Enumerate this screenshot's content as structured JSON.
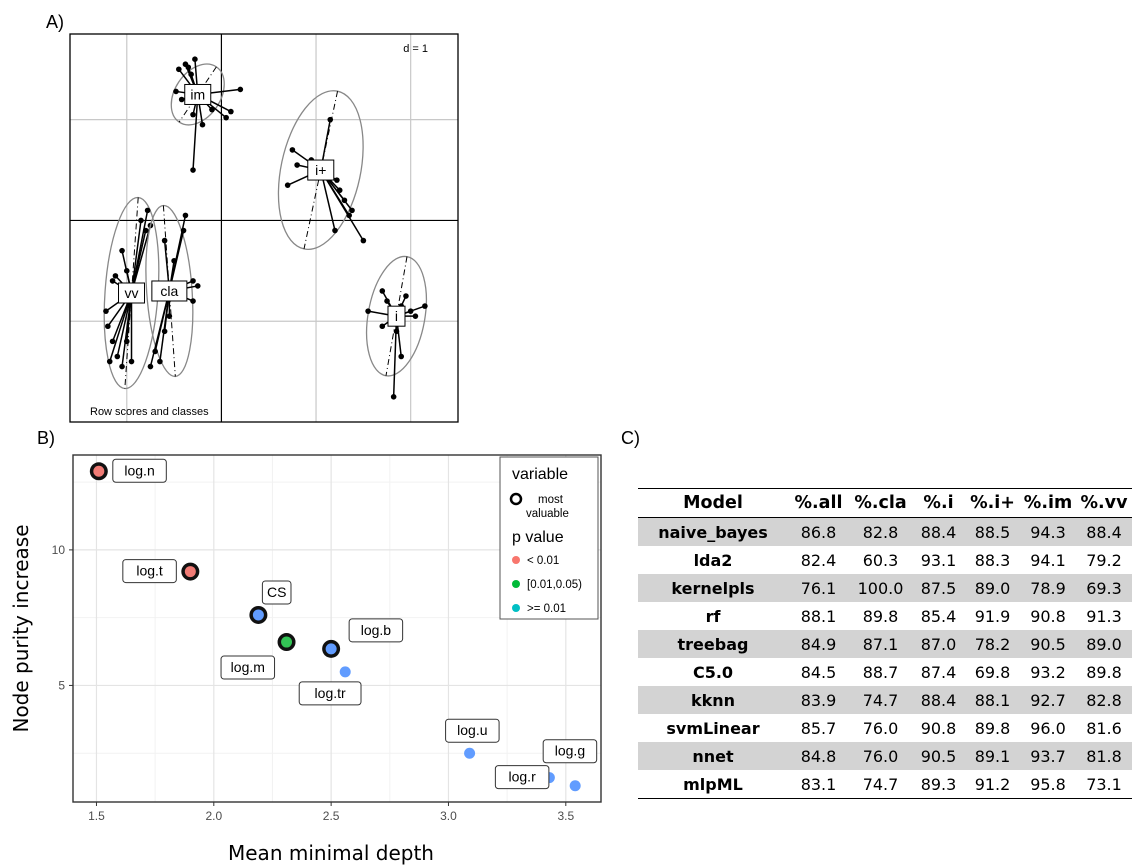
{
  "panel_labels": {
    "a": "A)",
    "b": "B)",
    "c": "C)"
  },
  "chart_data": [
    {
      "type": "scatter",
      "panel": "A",
      "title": "",
      "annotations": {
        "scale": "d = 1",
        "caption": "Row scores and classes"
      },
      "classes": [
        {
          "label": "im",
          "center": [
            -0.25,
            1.25
          ],
          "ellipse": {
            "rx": 0.24,
            "ry": 0.33,
            "angle": -85
          },
          "points": [
            [
              -0.45,
              1.5
            ],
            [
              -0.38,
              1.55
            ],
            [
              -0.32,
              1.45
            ],
            [
              -0.42,
              1.2
            ],
            [
              -0.48,
              1.28
            ],
            [
              -0.3,
              1.05
            ],
            [
              -0.2,
              0.95
            ],
            [
              -0.1,
              1.1
            ],
            [
              0.05,
              1.02
            ],
            [
              0.1,
              1.08
            ],
            [
              0.2,
              1.3
            ],
            [
              -0.28,
              1.6
            ],
            [
              -0.35,
              1.52
            ],
            [
              -0.3,
              0.5
            ]
          ]
        },
        {
          "label": "i+",
          "center": [
            1.05,
            0.5
          ],
          "ellipse": {
            "rx": 0.42,
            "ry": 0.8,
            "angle": -30
          },
          "points": [
            [
              1.15,
              1.0
            ],
            [
              0.75,
              0.7
            ],
            [
              0.8,
              0.55
            ],
            [
              0.7,
              0.35
            ],
            [
              0.95,
              0.6
            ],
            [
              1.22,
              0.4
            ],
            [
              1.3,
              0.2
            ],
            [
              1.38,
              0.1
            ],
            [
              1.25,
              0.3
            ],
            [
              1.2,
              -0.1
            ],
            [
              1.35,
              0.05
            ],
            [
              1.5,
              -0.2
            ]
          ]
        },
        {
          "label": "vv",
          "center": [
            -0.95,
            -0.72
          ],
          "ellipse": {
            "rx": 0.28,
            "ry": 0.95,
            "angle": -10
          },
          "points": [
            [
              -1.22,
              -0.9
            ],
            [
              -1.2,
              -1.05
            ],
            [
              -1.15,
              -1.2
            ],
            [
              -1.18,
              -1.4
            ],
            [
              -1.1,
              -1.35
            ],
            [
              -1.05,
              -1.45
            ],
            [
              -1.0,
              -1.2
            ],
            [
              -0.95,
              -1.4
            ],
            [
              -1.12,
              -0.55
            ],
            [
              -1.05,
              -0.3
            ],
            [
              -0.8,
              -0.1
            ],
            [
              -0.78,
              0.1
            ],
            [
              -0.85,
              0.0
            ],
            [
              -0.75,
              -0.05
            ],
            [
              -1.0,
              -0.5
            ],
            [
              -0.92,
              -0.7
            ],
            [
              -1.15,
              -0.6
            ]
          ]
        },
        {
          "label": "cla",
          "center": [
            -0.55,
            -0.7
          ],
          "ellipse": {
            "rx": 0.24,
            "ry": 0.85,
            "angle": 10
          },
          "points": [
            [
              -0.3,
              -0.6
            ],
            [
              -0.25,
              -0.65
            ],
            [
              -0.3,
              -0.8
            ],
            [
              -0.4,
              -0.1
            ],
            [
              -0.38,
              0.05
            ],
            [
              -0.5,
              -0.4
            ],
            [
              -0.55,
              -0.95
            ],
            [
              -0.6,
              -1.1
            ],
            [
              -0.7,
              -1.3
            ],
            [
              -0.65,
              -1.4
            ],
            [
              -0.75,
              -1.45
            ],
            [
              -0.6,
              -0.2
            ]
          ]
        },
        {
          "label": "i",
          "center": [
            1.85,
            -0.95
          ],
          "ellipse": {
            "rx": 0.3,
            "ry": 0.6,
            "angle": -25
          },
          "points": [
            [
              1.7,
              -0.7
            ],
            [
              1.75,
              -0.8
            ],
            [
              1.9,
              -0.85
            ],
            [
              2.0,
              -0.9
            ],
            [
              2.05,
              -0.95
            ],
            [
              2.15,
              -0.85
            ],
            [
              1.7,
              -1.05
            ],
            [
              1.85,
              -1.1
            ],
            [
              1.9,
              -1.35
            ],
            [
              1.82,
              -1.75
            ],
            [
              1.55,
              -0.9
            ],
            [
              1.95,
              -0.75
            ]
          ]
        }
      ],
      "xlim": [
        -1.6,
        2.5
      ],
      "ylim": [
        -2.0,
        1.85
      ],
      "grid": [
        -1,
        0,
        1,
        2
      ]
    },
    {
      "type": "scatter",
      "panel": "B",
      "xlabel": "Mean minimal depth",
      "ylabel": "Node purity increase",
      "xlim": [
        1.4,
        3.65
      ],
      "ylim": [
        0.7,
        13.5
      ],
      "xticks": [
        "1.5",
        "2.0",
        "2.5",
        "3.0",
        "3.5"
      ],
      "yticks": [
        "5",
        "10"
      ],
      "legend": {
        "title_variable": "variable",
        "most_valuable_line1": "most",
        "most_valuable_line2": "valuable",
        "title_p": "p value",
        "items": [
          "< 0.01",
          "[0.01,0.05)",
          ">= 0.01"
        ],
        "colors": [
          "#f8766d",
          "#00ba38",
          "#00bfc4"
        ]
      },
      "points": [
        {
          "label": "log.n",
          "x": 1.51,
          "y": 12.9,
          "color": "#f07b75",
          "most_valuable": true
        },
        {
          "label": "log.t",
          "x": 1.9,
          "y": 9.2,
          "color": "#f07b75",
          "most_valuable": true
        },
        {
          "label": "CS",
          "x": 2.19,
          "y": 7.6,
          "color": "#619cff",
          "most_valuable": true
        },
        {
          "label": "log.m",
          "x": 2.31,
          "y": 6.6,
          "color": "#33c455",
          "most_valuable": true
        },
        {
          "label": "log.b",
          "x": 2.5,
          "y": 6.35,
          "color": "#619cff",
          "most_valuable": true
        },
        {
          "label": "log.tr",
          "x": 2.56,
          "y": 5.5,
          "color": "#619cff",
          "most_valuable": false
        },
        {
          "label": "log.u",
          "x": 3.09,
          "y": 2.5,
          "color": "#619cff",
          "most_valuable": false
        },
        {
          "label": "log.r",
          "x": 3.43,
          "y": 1.6,
          "color": "#619cff",
          "most_valuable": false
        },
        {
          "label": "log.g",
          "x": 3.54,
          "y": 1.3,
          "color": "#619cff",
          "most_valuable": false
        }
      ]
    },
    {
      "type": "table",
      "panel": "C",
      "columns": [
        "Model",
        "%.all",
        "%.cla",
        "%.i",
        "%.i+",
        "%.im",
        "%.vv"
      ],
      "rows": [
        [
          "naive_bayes",
          "86.8",
          "82.8",
          "88.4",
          "88.5",
          "94.3",
          "88.4"
        ],
        [
          "lda2",
          "82.4",
          "60.3",
          "93.1",
          "88.3",
          "94.1",
          "79.2"
        ],
        [
          "kernelpls",
          "76.1",
          "100.0",
          "87.5",
          "89.0",
          "78.9",
          "69.3"
        ],
        [
          "rf",
          "88.1",
          "89.8",
          "85.4",
          "91.9",
          "90.8",
          "91.3"
        ],
        [
          "treebag",
          "84.9",
          "87.1",
          "87.0",
          "78.2",
          "90.5",
          "89.0"
        ],
        [
          "C5.0",
          "84.5",
          "88.7",
          "87.4",
          "69.8",
          "93.2",
          "89.8"
        ],
        [
          "kknn",
          "83.9",
          "74.7",
          "88.4",
          "88.1",
          "92.7",
          "82.8"
        ],
        [
          "svmLinear",
          "85.7",
          "76.0",
          "90.8",
          "89.8",
          "96.0",
          "81.6"
        ],
        [
          "nnet",
          "84.8",
          "76.0",
          "90.5",
          "89.1",
          "93.7",
          "81.8"
        ],
        [
          "mlpML",
          "83.1",
          "74.7",
          "89.3",
          "91.2",
          "95.8",
          "73.1"
        ]
      ]
    }
  ]
}
